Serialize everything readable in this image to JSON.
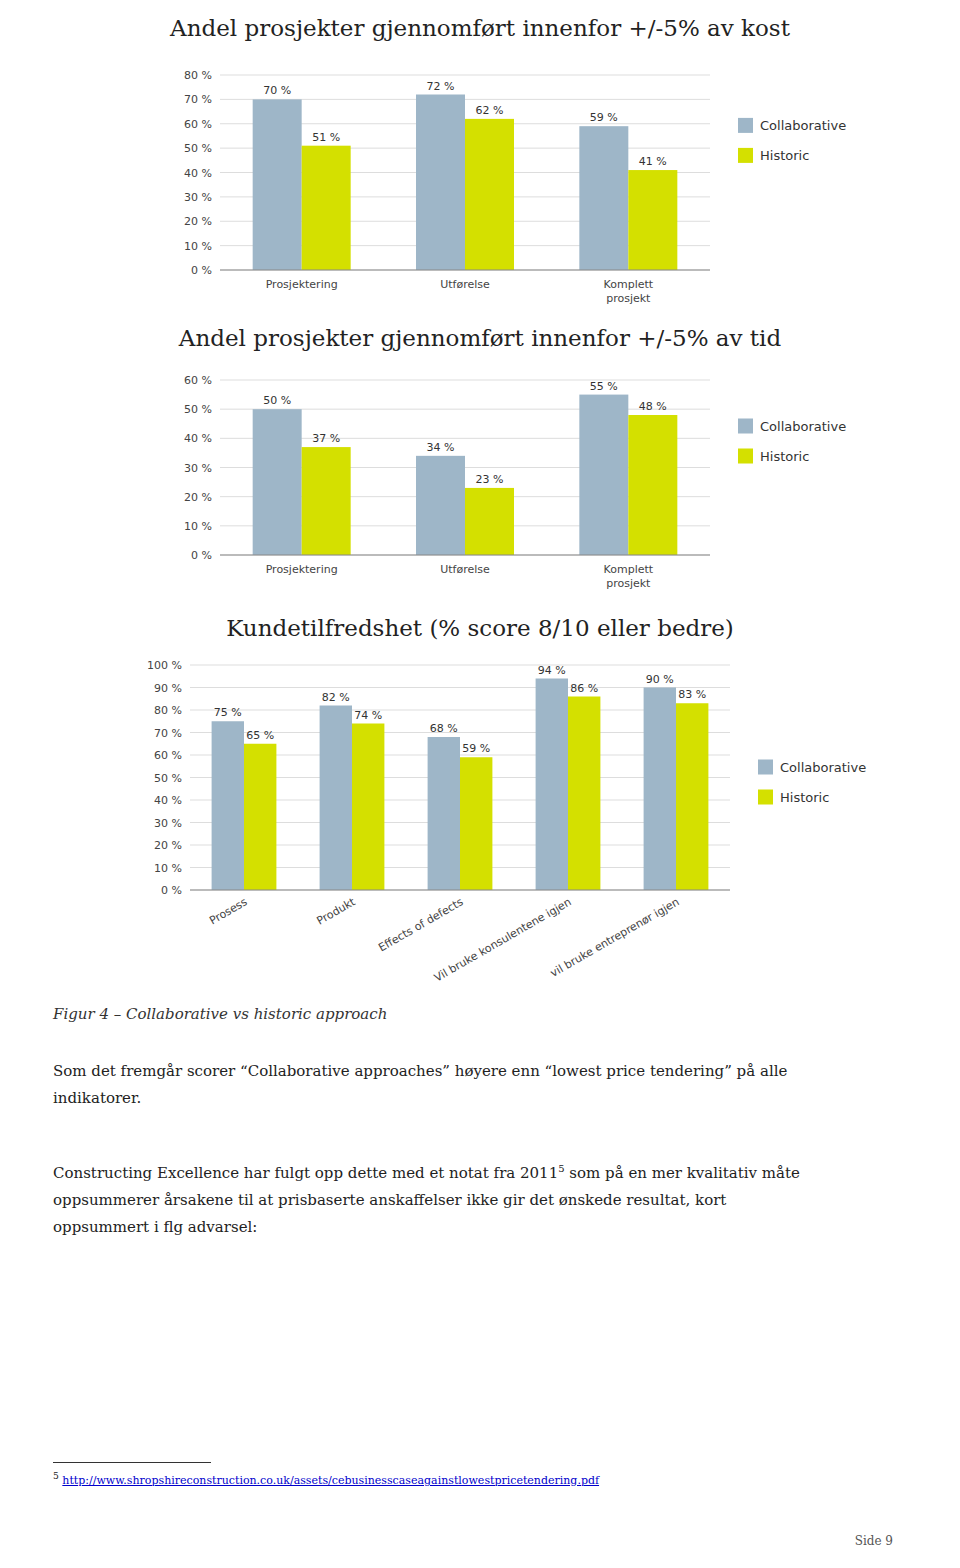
{
  "chart_data": [
    {
      "type": "bar",
      "title": "Andel prosjekter gjennomført innenfor +/-5% av kost",
      "categories": [
        "Prosjektering",
        "Utførelse",
        "Komplett\nprosjekt"
      ],
      "series": [
        {
          "name": "Collaborative",
          "color": "#9EB6C8",
          "values": [
            70,
            72,
            59
          ],
          "value_labels": [
            "70 %",
            "72 %",
            "59 %"
          ]
        },
        {
          "name": "Historic",
          "color": "#D4E000",
          "values": [
            51,
            62,
            41
          ],
          "value_labels": [
            "51 %",
            "62 %",
            "41 %"
          ]
        }
      ],
      "ylim": [
        0,
        80
      ],
      "yticks": [
        {
          "value": 0,
          "label": "0 %"
        },
        {
          "value": 10,
          "label": "10 %"
        },
        {
          "value": 20,
          "label": "20 %"
        },
        {
          "value": 30,
          "label": "30 %"
        },
        {
          "value": 40,
          "label": "40 %"
        },
        {
          "value": 50,
          "label": "50 %"
        },
        {
          "value": 60,
          "label": "60 %"
        },
        {
          "value": 70,
          "label": "70 %"
        },
        {
          "value": 80,
          "label": "80 %"
        }
      ],
      "grid": true,
      "legend": "right",
      "data_labels": true
    },
    {
      "type": "bar",
      "title": "Andel prosjekter gjennomført innenfor +/-5% av tid",
      "categories": [
        "Prosjektering",
        "Utførelse",
        "Komplett\nprosjekt"
      ],
      "series": [
        {
          "name": "Collaborative",
          "color": "#9EB6C8",
          "values": [
            50,
            34,
            55
          ],
          "value_labels": [
            "50 %",
            "34 %",
            "55 %"
          ]
        },
        {
          "name": "Historic",
          "color": "#D4E000",
          "values": [
            37,
            23,
            48
          ],
          "value_labels": [
            "37 %",
            "23 %",
            "48 %"
          ]
        }
      ],
      "ylim": [
        0,
        60
      ],
      "yticks": [
        {
          "value": 0,
          "label": "0 %"
        },
        {
          "value": 10,
          "label": "10 %"
        },
        {
          "value": 20,
          "label": "20 %"
        },
        {
          "value": 30,
          "label": "30 %"
        },
        {
          "value": 40,
          "label": "40 %"
        },
        {
          "value": 50,
          "label": "50 %"
        },
        {
          "value": 60,
          "label": "60 %"
        }
      ],
      "grid": true,
      "legend": "right",
      "data_labels": true
    },
    {
      "type": "bar",
      "title": "Kundetilfredshet (% score 8/10 eller bedre)",
      "categories": [
        "Prosess",
        "Produkt",
        "Effects of defects",
        "Vil bruke konsulentene igjen",
        "vil bruke entreprenør igjen"
      ],
      "series": [
        {
          "name": "Collaborative",
          "color": "#9EB6C8",
          "values": [
            75,
            82,
            68,
            94,
            90
          ],
          "value_labels": [
            "75 %",
            "82 %",
            "68 %",
            "94 %",
            "90 %"
          ]
        },
        {
          "name": "Historic",
          "color": "#D4E000",
          "values": [
            65,
            74,
            59,
            86,
            83
          ],
          "value_labels": [
            "65 %",
            "74 %",
            "59 %",
            "86 %",
            "83 %"
          ]
        }
      ],
      "ylim": [
        0,
        100
      ],
      "yticks": [
        {
          "value": 0,
          "label": "0 %"
        },
        {
          "value": 10,
          "label": "10 %"
        },
        {
          "value": 20,
          "label": "20 %"
        },
        {
          "value": 30,
          "label": "30 %"
        },
        {
          "value": 40,
          "label": "40 %"
        },
        {
          "value": 50,
          "label": "50 %"
        },
        {
          "value": 60,
          "label": "60 %"
        },
        {
          "value": 70,
          "label": "70 %"
        },
        {
          "value": 80,
          "label": "80 %"
        },
        {
          "value": 90,
          "label": "90 %"
        },
        {
          "value": 100,
          "label": "100 %"
        }
      ],
      "grid": true,
      "legend": "right",
      "data_labels": true
    }
  ],
  "page": {
    "caption": "Figur 4 – Collaborative vs historic approach",
    "paragraphs": [
      "Som det fremgår scorer “Collaborative approaches” høyere enn “lowest price tendering” på alle\nindikatorer.",
      {
        "text": "Constructing Excellence har fulgt opp dette med et notat fra 2011",
        "sup": "5",
        "rest": " som på en mer kvalitativ måte\noppsummerer årsakene til at prisbaserte anskaffelser ikke gir det ønskede resultat, kort\noppsummert i flg advarsel:"
      }
    ],
    "footnote": {
      "number": "5",
      "url": "http://www.shropshireconstruction.co.uk/assets/cebusinesscaseagainstlowestpricetendering.pdf"
    },
    "page_label": "Side 9"
  }
}
